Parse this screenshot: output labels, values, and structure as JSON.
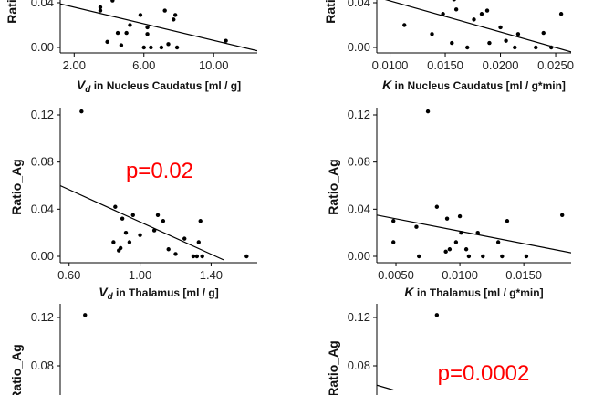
{
  "chart_data": [
    {
      "type": "scatter",
      "panel": "top-left",
      "ylabel": "Ratio_Ag",
      "xlabel": {
        "symbol": "V",
        "sub": "d",
        "rest": " in Nucleus Caudatus [ml / g]"
      },
      "xticks": [
        "2.00",
        "6.00",
        "10.00"
      ],
      "xtick_values": [
        2,
        6,
        10
      ],
      "yticks": [
        "0.00",
        "0.04"
      ],
      "ytick_values": [
        0.0,
        0.04
      ],
      "xlim": [
        1.2,
        12.5
      ],
      "ylim": [
        -0.003,
        0.05
      ],
      "points": [
        [
          3.5,
          0.033
        ],
        [
          3.5,
          0.036
        ],
        [
          4.2,
          0.042
        ],
        [
          3.9,
          0.005
        ],
        [
          4.5,
          0.013
        ],
        [
          4.7,
          0.002
        ],
        [
          5.0,
          0.013
        ],
        [
          5.2,
          0.02
        ],
        [
          5.8,
          0.029
        ],
        [
          6.0,
          0.0
        ],
        [
          6.2,
          0.018
        ],
        [
          6.2,
          0.012
        ],
        [
          6.4,
          0.0
        ],
        [
          7.0,
          0.0
        ],
        [
          7.2,
          0.033
        ],
        [
          7.4,
          0.003
        ],
        [
          7.7,
          0.025
        ],
        [
          7.8,
          0.029
        ],
        [
          7.9,
          0.0
        ],
        [
          10.7,
          0.006
        ]
      ],
      "fit_line": [
        [
          1.2,
          0.039
        ],
        [
          12.5,
          -0.003
        ]
      ],
      "annotation": ""
    },
    {
      "type": "scatter",
      "panel": "top-right",
      "ylabel": "Ratio_Ag",
      "xlabel": {
        "symbol": "K",
        "sub": "",
        "rest": " in Nucleus Caudatus [ml / g*min]"
      },
      "xticks": [
        "0.0100",
        "0.0150",
        "0.0200",
        "0.0250"
      ],
      "xtick_values": [
        0.01,
        0.015,
        0.02,
        0.025
      ],
      "yticks": [
        "0.00",
        "0.04"
      ],
      "ytick_values": [
        0.0,
        0.04
      ],
      "xlim": [
        0.0088,
        0.0264
      ],
      "ylim": [
        -0.003,
        0.05
      ],
      "points": [
        [
          0.0113,
          0.02
        ],
        [
          0.0138,
          0.012
        ],
        [
          0.0148,
          0.03
        ],
        [
          0.0156,
          0.004
        ],
        [
          0.016,
          0.034
        ],
        [
          0.017,
          0.0
        ],
        [
          0.0176,
          0.025
        ],
        [
          0.0183,
          0.03
        ],
        [
          0.0188,
          0.033
        ],
        [
          0.019,
          0.004
        ],
        [
          0.0205,
          0.006
        ],
        [
          0.0213,
          0.0
        ],
        [
          0.0216,
          0.012
        ],
        [
          0.0232,
          0.0
        ],
        [
          0.0239,
          0.013
        ],
        [
          0.0246,
          0.0
        ],
        [
          0.0255,
          0.03
        ],
        [
          0.0158,
          0.043
        ],
        [
          0.02,
          0.018
        ]
      ],
      "fit_line": [
        [
          0.0088,
          0.045
        ],
        [
          0.0264,
          -0.004
        ]
      ],
      "annotation": ""
    },
    {
      "type": "scatter",
      "panel": "middle-left",
      "ylabel": "Ratio_Ag",
      "xlabel": {
        "symbol": "V",
        "sub": "d",
        "rest": " in Thalamus [ml / g]"
      },
      "xticks": [
        "0.60",
        "1.00",
        "1.40"
      ],
      "xtick_values": [
        0.6,
        1.0,
        1.4
      ],
      "yticks": [
        "0.00",
        "0.04",
        "0.08",
        "0.12"
      ],
      "ytick_values": [
        0.0,
        0.04,
        0.08,
        0.12
      ],
      "xlim": [
        0.55,
        1.66
      ],
      "ylim": [
        -0.003,
        0.13
      ],
      "points": [
        [
          0.67,
          0.123
        ],
        [
          0.86,
          0.042
        ],
        [
          0.85,
          0.012
        ],
        [
          0.88,
          0.005
        ],
        [
          0.89,
          0.007
        ],
        [
          0.9,
          0.032
        ],
        [
          0.92,
          0.02
        ],
        [
          0.94,
          0.012
        ],
        [
          0.96,
          0.035
        ],
        [
          1.0,
          0.018
        ],
        [
          1.08,
          0.022
        ],
        [
          1.1,
          0.035
        ],
        [
          1.13,
          0.03
        ],
        [
          1.16,
          0.006
        ],
        [
          1.2,
          0.002
        ],
        [
          1.25,
          0.015
        ],
        [
          1.3,
          0.0
        ],
        [
          1.32,
          0.0
        ],
        [
          1.33,
          0.012
        ],
        [
          1.34,
          0.03
        ],
        [
          1.35,
          0.0
        ],
        [
          1.6,
          0.0
        ]
      ],
      "fit_line": [
        [
          0.55,
          0.06
        ],
        [
          1.47,
          -0.003
        ]
      ],
      "annotation": "p=0.02"
    },
    {
      "type": "scatter",
      "panel": "middle-right",
      "ylabel": "Ratio_Ag",
      "xlabel": {
        "symbol": "K",
        "sub": "",
        "rest": " in Thalamus [ml / g*min]"
      },
      "xticks": [
        "0.0050",
        "0.0100",
        "0.0150"
      ],
      "xtick_values": [
        0.005,
        0.01,
        0.015
      ],
      "yticks": [
        "0.00",
        "0.04",
        "0.08",
        "0.12"
      ],
      "ytick_values": [
        0.0,
        0.04,
        0.08,
        0.12
      ],
      "xlim": [
        0.0035,
        0.0187
      ],
      "ylim": [
        -0.003,
        0.13
      ],
      "points": [
        [
          0.0048,
          0.03
        ],
        [
          0.0048,
          0.012
        ],
        [
          0.0066,
          0.025
        ],
        [
          0.0068,
          0.0
        ],
        [
          0.0075,
          0.123
        ],
        [
          0.0082,
          0.042
        ],
        [
          0.0089,
          0.004
        ],
        [
          0.009,
          0.032
        ],
        [
          0.0092,
          0.006
        ],
        [
          0.0097,
          0.012
        ],
        [
          0.01,
          0.034
        ],
        [
          0.0101,
          0.02
        ],
        [
          0.0105,
          0.006
        ],
        [
          0.0107,
          0.0
        ],
        [
          0.0114,
          0.02
        ],
        [
          0.0118,
          0.0
        ],
        [
          0.013,
          0.012
        ],
        [
          0.0133,
          0.0
        ],
        [
          0.0137,
          0.03
        ],
        [
          0.0152,
          0.0
        ],
        [
          0.018,
          0.035
        ]
      ],
      "fit_line": [
        [
          0.0035,
          0.035
        ],
        [
          0.0187,
          0.003
        ]
      ],
      "annotation": ""
    },
    {
      "type": "scatter",
      "panel": "bottom-left",
      "ylabel": "Ratio_Ag",
      "xlabel": {
        "symbol": "",
        "sub": "",
        "rest": ""
      },
      "xticks": [],
      "xtick_values": [],
      "yticks": [
        "0.08",
        "0.12"
      ],
      "ytick_values": [
        0.08,
        0.12
      ],
      "xlim": [
        0.55,
        1.66
      ],
      "ylim": [
        0.06,
        0.13
      ],
      "points": [
        [
          0.69,
          0.122
        ]
      ],
      "fit_line": [],
      "annotation": ""
    },
    {
      "type": "scatter",
      "panel": "bottom-right",
      "ylabel": "Ratio_Ag",
      "xlabel": {
        "symbol": "",
        "sub": "",
        "rest": ""
      },
      "xticks": [],
      "xtick_values": [],
      "yticks": [
        "0.08",
        "0.12"
      ],
      "ytick_values": [
        0.08,
        0.12
      ],
      "xlim": [
        0.0035,
        0.0187
      ],
      "ylim": [
        0.06,
        0.13
      ],
      "points": [
        [
          0.0082,
          0.122
        ]
      ],
      "fit_line": [
        [
          0.0035,
          0.064
        ],
        [
          0.0048,
          0.06
        ]
      ],
      "annotation": "p=0.0002"
    }
  ]
}
